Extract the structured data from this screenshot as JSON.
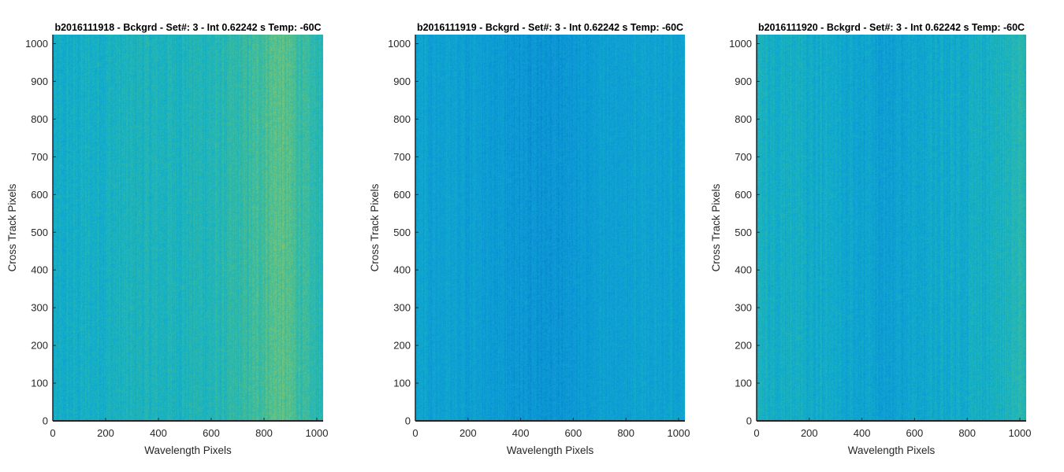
{
  "chart_data": [
    {
      "type": "heatmap",
      "title": "b2016111918 - Bckgrd - Set#: 3 - Int 0.62242 s Temp: -60C",
      "xlabel": "Wavelength Pixels",
      "ylabel": "Cross Track Pixels",
      "xlim": [
        0,
        1024
      ],
      "ylim": [
        0,
        1024
      ],
      "xticks": [
        0,
        200,
        400,
        600,
        800,
        1000
      ],
      "yticks": [
        0,
        100,
        200,
        300,
        400,
        500,
        600,
        700,
        800,
        900,
        1000
      ],
      "column_profile": {
        "x": [
          0,
          100,
          200,
          300,
          400,
          500,
          600,
          700,
          780,
          850,
          900,
          960,
          1024
        ],
        "level": [
          0.36,
          0.4,
          0.42,
          0.44,
          0.45,
          0.46,
          0.48,
          0.52,
          0.6,
          0.68,
          0.64,
          0.55,
          0.5
        ]
      },
      "noise_level": 0.08
    },
    {
      "type": "heatmap",
      "title": "b2016111919 - Bckgrd - Set#: 3 - Int 0.62242 s Temp: -60C",
      "xlabel": "Wavelength Pixels",
      "ylabel": "Cross Track Pixels",
      "xlim": [
        0,
        1024
      ],
      "ylim": [
        0,
        1024
      ],
      "xticks": [
        0,
        200,
        400,
        600,
        800,
        1000
      ],
      "yticks": [
        0,
        100,
        200,
        300,
        400,
        500,
        600,
        700,
        800,
        900,
        1000
      ],
      "column_profile": {
        "x": [
          0,
          100,
          200,
          300,
          400,
          480,
          550,
          650,
          750,
          850,
          950,
          1024
        ],
        "level": [
          0.3,
          0.29,
          0.28,
          0.26,
          0.23,
          0.2,
          0.22,
          0.25,
          0.28,
          0.3,
          0.31,
          0.32
        ]
      },
      "noise_level": 0.07
    },
    {
      "type": "heatmap",
      "title": "b2016111920 - Bckgrd - Set#: 3 - Int 0.62242 s Temp: -60C",
      "xlabel": "Wavelength Pixels",
      "ylabel": "Cross Track Pixels",
      "xlim": [
        0,
        1024
      ],
      "ylim": [
        0,
        1024
      ],
      "xticks": [
        0,
        200,
        400,
        600,
        800,
        1000
      ],
      "yticks": [
        0,
        100,
        200,
        300,
        400,
        500,
        600,
        700,
        800,
        900,
        1000
      ],
      "column_profile": {
        "x": [
          0,
          100,
          200,
          300,
          400,
          480,
          560,
          650,
          750,
          850,
          950,
          1000,
          1024
        ],
        "level": [
          0.4,
          0.4,
          0.38,
          0.35,
          0.31,
          0.27,
          0.3,
          0.34,
          0.37,
          0.4,
          0.44,
          0.5,
          0.45
        ]
      },
      "noise_level": 0.08
    }
  ],
  "colors": {
    "colormap": [
      "#0072bd",
      "#0c95d8",
      "#12b0c8",
      "#3dbc9c",
      "#8ac66a",
      "#c7c43a"
    ],
    "axis": "#262626",
    "text": "#262626",
    "title": "#000000"
  }
}
